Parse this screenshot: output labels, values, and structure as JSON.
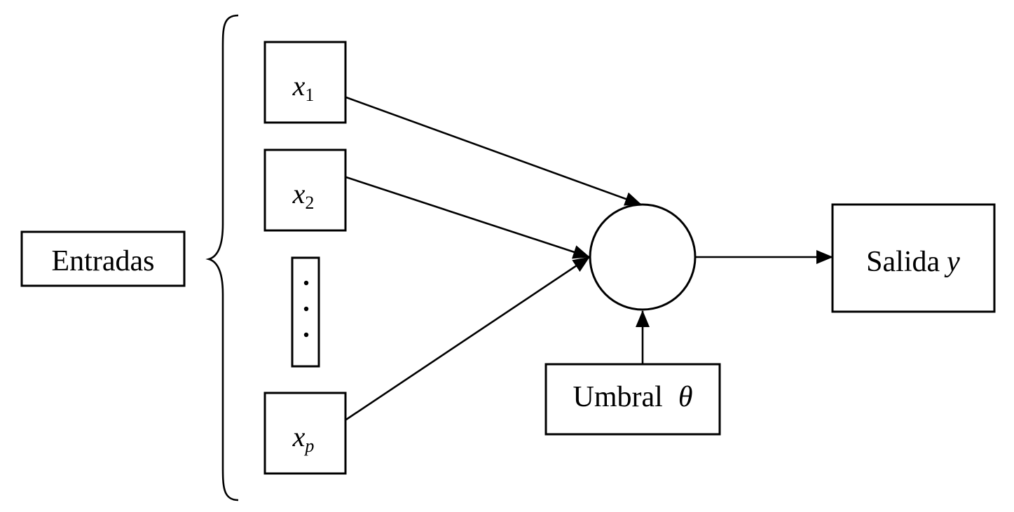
{
  "diagram": {
    "inputs_group_label": "Entradas",
    "inputs": [
      {
        "symbol": "x",
        "subscript": "1"
      },
      {
        "symbol": "x",
        "subscript": "2"
      },
      {
        "symbol": "x",
        "subscript": "p"
      }
    ],
    "ellipsis": "...",
    "threshold": {
      "word": "Umbral",
      "symbol": "θ"
    },
    "output": {
      "word": "Salida",
      "symbol": "y"
    }
  }
}
